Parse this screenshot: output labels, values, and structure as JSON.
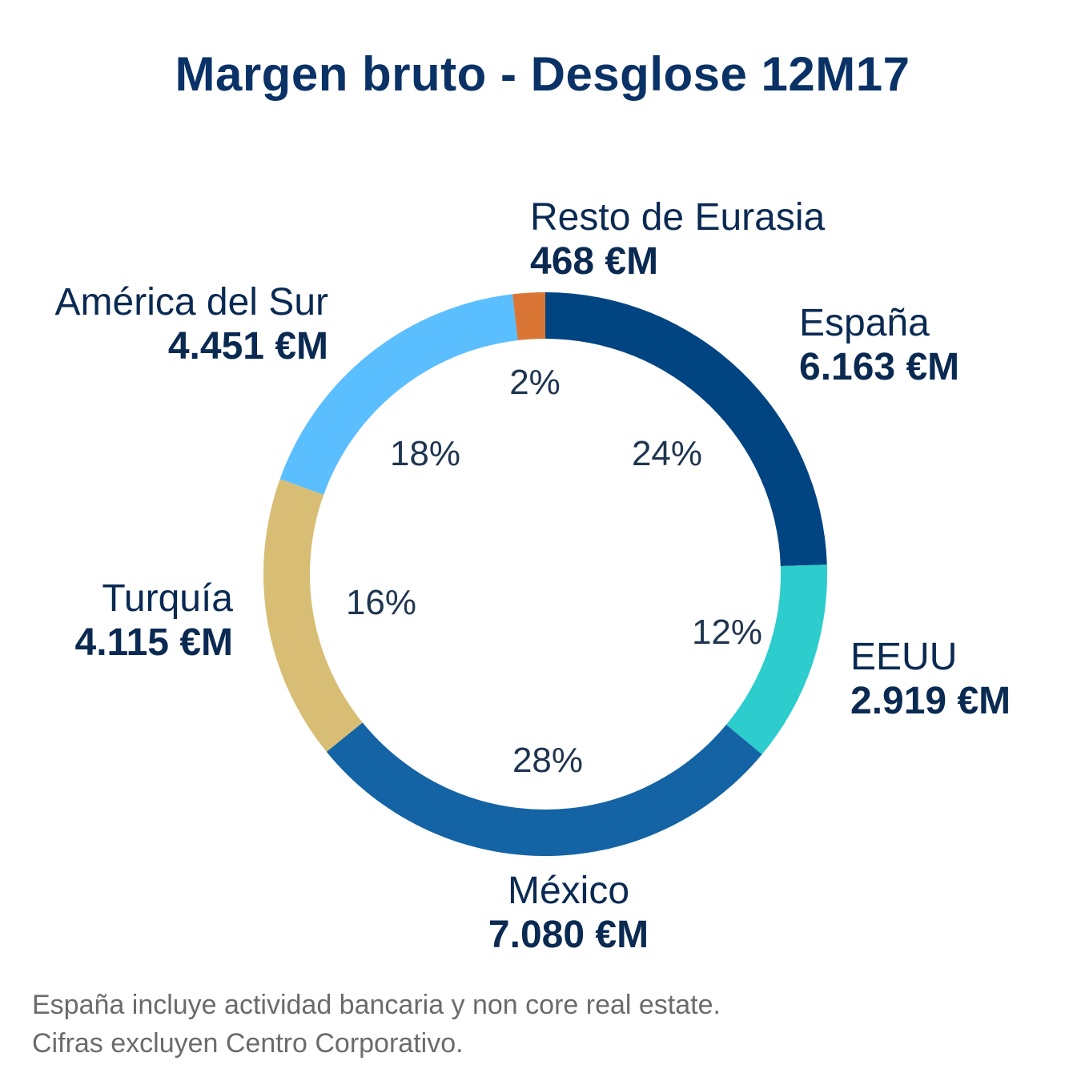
{
  "title": "Margen bruto - Desglose 12M17",
  "chart_data": {
    "type": "pie",
    "title": "Margen bruto - Desglose 12M17",
    "slices": [
      {
        "label": "España",
        "value": 6163,
        "value_text": "6.163 €M",
        "pct_text": "24%",
        "color": "#004481"
      },
      {
        "label": "EEUU",
        "value": 2919,
        "value_text": "2.919 €M",
        "pct_text": "12%",
        "color": "#2dcccd"
      },
      {
        "label": "México",
        "value": 7080,
        "value_text": "7.080 €M",
        "pct_text": "28%",
        "color": "#1464a5"
      },
      {
        "label": "Turquía",
        "value": 4115,
        "value_text": "4.115 €M",
        "pct_text": "16%",
        "color": "#d8be75"
      },
      {
        "label": "América del Sur",
        "value": 4451,
        "value_text": "4.451 €M",
        "pct_text": "18%",
        "color": "#5bbeff"
      },
      {
        "label": "Resto de Eurasia",
        "value": 468,
        "value_text": "468 €M",
        "pct_text": "2%",
        "color": "#da7635"
      }
    ]
  },
  "notes": [
    "España incluye actividad bancaria y non core real estate.",
    "Cifras excluyen Centro Corporativo."
  ]
}
